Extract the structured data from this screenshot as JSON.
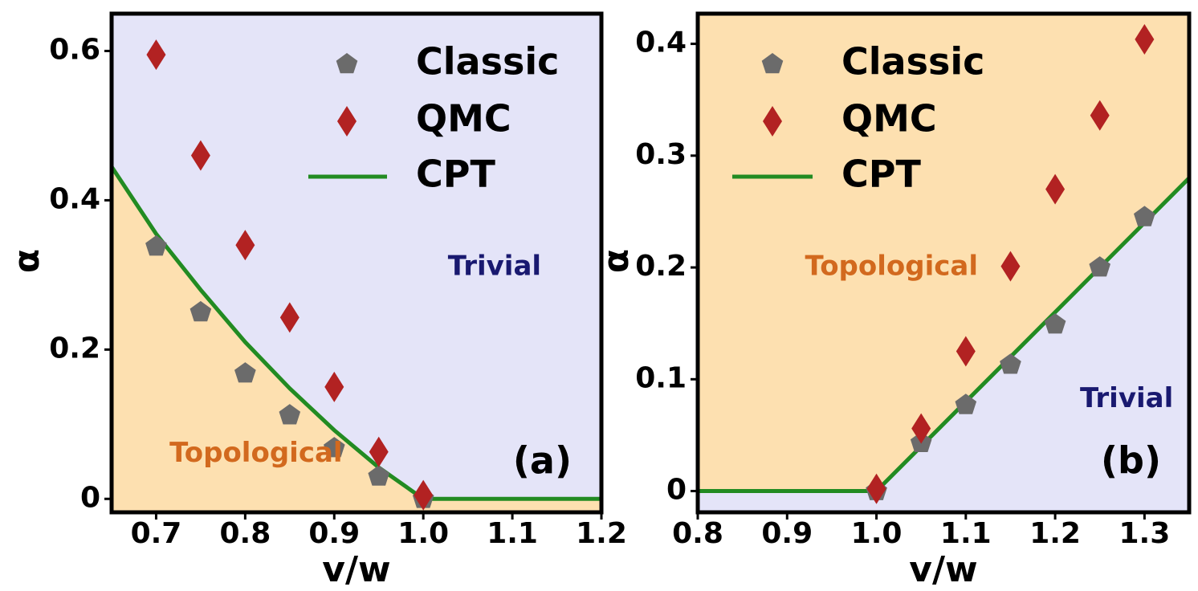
{
  "colors": {
    "topological_fill": "#fde0b0",
    "trivial_fill": "#e4e4f8",
    "classic": "#6b6b6b",
    "qmc": "#b22222",
    "cpt": "#228b22",
    "topological_text": "#d2691e",
    "trivial_text": "#191970"
  },
  "chart_data": [
    {
      "type": "scatter",
      "panel_label": "(a)",
      "xlabel": "v/w",
      "ylabel": "α",
      "xlim": [
        0.65,
        1.2
      ],
      "ylim": [
        -0.018,
        0.65
      ],
      "xticks": [
        0.7,
        0.8,
        0.9,
        1.0,
        1.1,
        1.2
      ],
      "xtick_labels": [
        "0.7",
        "0.8",
        "0.9",
        "1.0",
        "1.1",
        "1.2"
      ],
      "yticks": [
        0,
        0.2,
        0.4,
        0.6
      ],
      "ytick_labels": [
        "0",
        "0.2",
        "0.4",
        "0.6"
      ],
      "grid": false,
      "legend": "upper-right",
      "regions": [
        {
          "name": "Topological",
          "position": "below-curve"
        },
        {
          "name": "Trivial",
          "position": "above-curve"
        }
      ],
      "region_labels": [
        {
          "text": "Topological",
          "x": 0.715,
          "y": 0.06
        },
        {
          "text": "Trivial",
          "x": 1.08,
          "y": 0.31
        }
      ],
      "series": [
        {
          "name": "Classic",
          "marker": "pentagon",
          "x": [
            0.7,
            0.75,
            0.8,
            0.85,
            0.9,
            0.95,
            1.0
          ],
          "y": [
            0.338,
            0.25,
            0.168,
            0.112,
            0.068,
            0.03,
            0.0
          ]
        },
        {
          "name": "QMC",
          "marker": "diamond",
          "x": [
            0.7,
            0.75,
            0.8,
            0.85,
            0.9,
            0.95,
            1.0
          ],
          "y": [
            0.595,
            0.46,
            0.34,
            0.243,
            0.15,
            0.063,
            0.005
          ]
        },
        {
          "name": "CPT",
          "marker": "line",
          "x": [
            0.65,
            0.7,
            0.75,
            0.8,
            0.85,
            0.9,
            0.95,
            1.0,
            1.05,
            1.1,
            1.15,
            1.2
          ],
          "y": [
            0.445,
            0.355,
            0.28,
            0.21,
            0.148,
            0.092,
            0.042,
            0.0,
            0.0,
            0.0,
            0.0,
            0.0
          ]
        }
      ]
    },
    {
      "type": "scatter",
      "panel_label": "(b)",
      "xlabel": "v/w",
      "ylabel": "α",
      "xlim": [
        0.8,
        1.35
      ],
      "ylim": [
        -0.019,
        0.427
      ],
      "xticks": [
        0.8,
        0.9,
        1.0,
        1.1,
        1.2,
        1.3
      ],
      "xtick_labels": [
        "0.8",
        "0.9",
        "1.0",
        "1.1",
        "1.2",
        "1.3"
      ],
      "yticks": [
        0,
        0.1,
        0.2,
        0.3,
        0.4
      ],
      "ytick_labels": [
        "0",
        "0.1",
        "0.2",
        "0.3",
        "0.4"
      ],
      "grid": false,
      "legend": "upper-left",
      "regions": [
        {
          "name": "Topological",
          "position": "above-curve"
        },
        {
          "name": "Trivial",
          "position": "below-curve"
        }
      ],
      "region_labels": [
        {
          "text": "Topological",
          "x": 0.92,
          "y": 0.2
        },
        {
          "text": "Trivial",
          "x": 1.28,
          "y": 0.082
        }
      ],
      "series": [
        {
          "name": "Classic",
          "marker": "pentagon",
          "x": [
            1.0,
            1.05,
            1.1,
            1.15,
            1.2,
            1.25,
            1.3
          ],
          "y": [
            0.0,
            0.043,
            0.077,
            0.113,
            0.149,
            0.2,
            0.245
          ]
        },
        {
          "name": "QMC",
          "marker": "diamond",
          "x": [
            1.0,
            1.05,
            1.1,
            1.15,
            1.2,
            1.25,
            1.3
          ],
          "y": [
            0.002,
            0.056,
            0.125,
            0.201,
            0.27,
            0.336,
            0.404
          ]
        },
        {
          "name": "CPT",
          "marker": "line",
          "x": [
            0.8,
            1.0,
            1.35
          ],
          "y": [
            0.0,
            0.0,
            0.28
          ]
        }
      ]
    }
  ]
}
